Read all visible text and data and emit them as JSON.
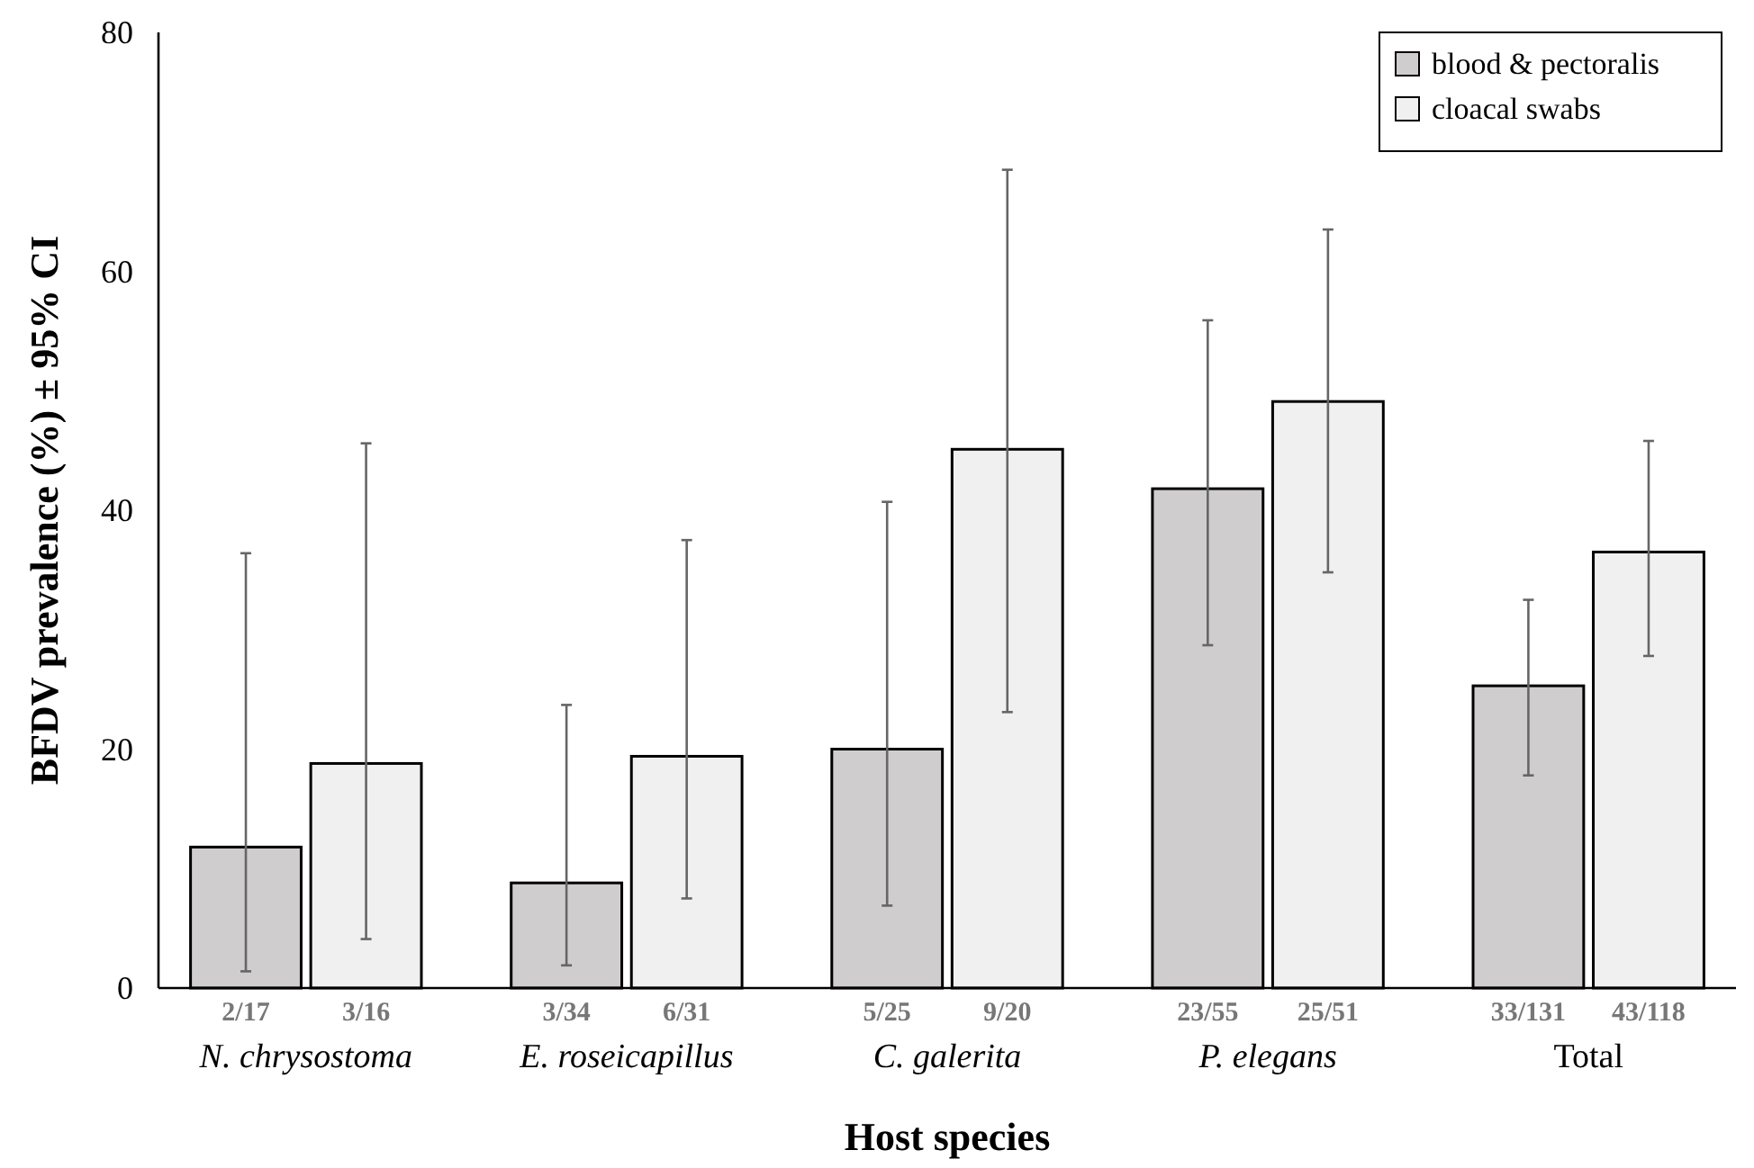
{
  "chart_data": {
    "type": "bar",
    "xlabel": "Host species",
    "ylabel": "BFDV prevalence (%) ± 95% CI",
    "categories": [
      "N. chrysostoma",
      "E. roseicapillus",
      "C. galerita",
      "P. elegans",
      "Total"
    ],
    "series": [
      {
        "name": "blood & pectoralis",
        "color": "#cfcdce",
        "values": [
          11.8,
          8.8,
          20.0,
          41.8,
          25.3
        ],
        "errors": [
          [
            1.4,
            36.4
          ],
          [
            1.9,
            23.7
          ],
          [
            6.9,
            40.7
          ],
          [
            28.7,
            55.9
          ],
          [
            17.8,
            32.5
          ]
        ]
      },
      {
        "name": "cloacal swabs",
        "color": "#f0f0f0",
        "values": [
          18.8,
          19.4,
          45.1,
          49.1,
          36.5
        ],
        "errors": [
          [
            4.1,
            45.6
          ],
          [
            7.5,
            37.5
          ],
          [
            23.1,
            68.5
          ],
          [
            34.8,
            63.5
          ],
          [
            27.8,
            45.8
          ]
        ]
      }
    ],
    "annotations": [
      "2/17",
      "3/16",
      "3/34",
      "6/31",
      "5/25",
      "9/20",
      "23/55",
      "25/51",
      "33/131",
      "43/118"
    ],
    "ylim": [
      0,
      80
    ],
    "yticks": [
      0,
      20,
      40,
      60,
      80
    ],
    "grid": false,
    "legend": "top right"
  }
}
